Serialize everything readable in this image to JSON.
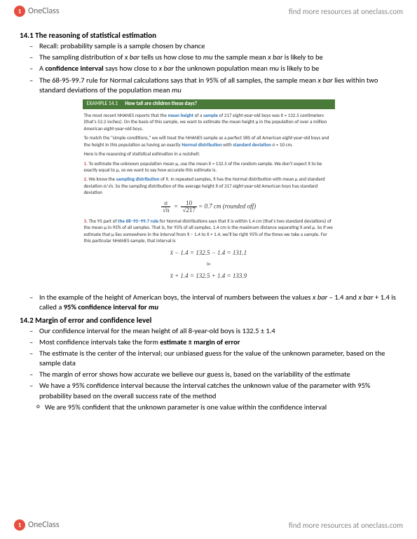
{
  "header": {
    "logo_text": "OneClass",
    "resources_link": "find more resources at oneclass.com"
  },
  "footer": {
    "logo_text": "OneClass",
    "resources_link": "find more resources at oneclass.com"
  },
  "section_14_1": {
    "title": "14.1 The reasoning of statistical estimation",
    "bullets": [
      "Recall: probability sample is a sample chosen by chance",
      "The sampling distribution of x bar tells us how close to mu the sample mean x bar is likely to be",
      "A confidence interval says how close to x bar the unknown population mean mu is likely to be",
      "The 68-95-99.7 rule for Normal calculations says that in 95% of all samples, the sample mean x bar lies within two standard deviations of the population mean mu"
    ],
    "post_bullet": "In the example of the height of American boys, the interval of numbers between the values x bar – 1.4 and x bar + 1.4 is called a 95% confidence interval for mu"
  },
  "example": {
    "tag": "EXAMPLE 14.1",
    "title": "How tall are children these days?",
    "p1_a": "The most recent NHANES reports that the ",
    "p1_b": "mean height",
    "p1_c": " of a ",
    "p1_d": "sample",
    "p1_e": " of 217 eight-year-old boys was x̄ = 132.5 centimeters (that's 52.2 inches). On the basis of this sample, we want to estimate the mean height μ in the population of over a million American eight-year-old boys.",
    "p2_a": "To match the \"simple conditions,\" we will treat the NHANES sample as a perfect SRS of all American eight-year-old boys and the height in this population as having an exactly ",
    "p2_b": "Normal distribution",
    "p2_c": " with ",
    "p2_d": "standard deviation",
    "p2_e": " σ = 10 cm.",
    "intro": "Here is the reasoning of statistical estimation in a nutshell:",
    "step1_num": "1.",
    "step1": " To estimate the unknown population mean μ, use the mean x̄ = 132.5 of the random sample. We don't expect x̄ to be exactly equal to μ, so we want to say how accurate this estimate is.",
    "step2_num": "2.",
    "step2_a": " We know the ",
    "step2_b": "sampling distribution",
    "step2_c": " of x̄. In repeated samples, x̄ has the Normal distribution with mean μ and standard deviation σ/√n. So the sampling distribution of the average height x̄ of 217 eight-year-old American boys has standard deviation",
    "formula1_sigma": "σ",
    "formula1_sqrtn": "√n",
    "formula1_10": "10",
    "formula1_217": "√217",
    "formula1_result": " = 0.7  cm (rounded off)",
    "step3_num": "3.",
    "step3_a": " The 95 part of ",
    "step3_b": "the 68–95–99.7 rule",
    "step3_c": " for Normal distributions says that x̄ is within 1.4 cm (that's two standard deviations) of the mean μ in 95% of all samples. That is, for 95% of all samples, 1.4 cm is the maximum distance separating x̄ and μ. So if we estimate that μ lies somewhere in the interval from x̄ − 1.4 to x̄ + 1.4, we'll be right 95% of the times we take a sample. For this particular NHANES sample, that interval is",
    "formula2": "x̄ − 1.4 = 132.5 − 1.4 = 131.1",
    "formula_to": "to",
    "formula3": "x̄ + 1.4 = 132.5 + 1.4 = 133.9"
  },
  "section_14_2": {
    "title": "14.2 Margin of error and confidence level",
    "bullets": [
      "Our confidence interval for the mean height of all 8-year-old boys is 132.5 ± 1.4",
      "Most confidence intervals take the form estimate ± margin of error",
      "The estimate is the center of the interval; our unbiased guess for the value of the unknown parameter, based on the sample data",
      "The margin of error shows how accurate we believe our guess is, based on the variability of the estimate",
      "We have a 95% confidence interval because the interval catches the unknown value of the parameter with 95% probability based on the overall success rate of the method"
    ],
    "sub_bullet": "We are 95% confident that the unknown parameter is one value within the confidence interval"
  }
}
